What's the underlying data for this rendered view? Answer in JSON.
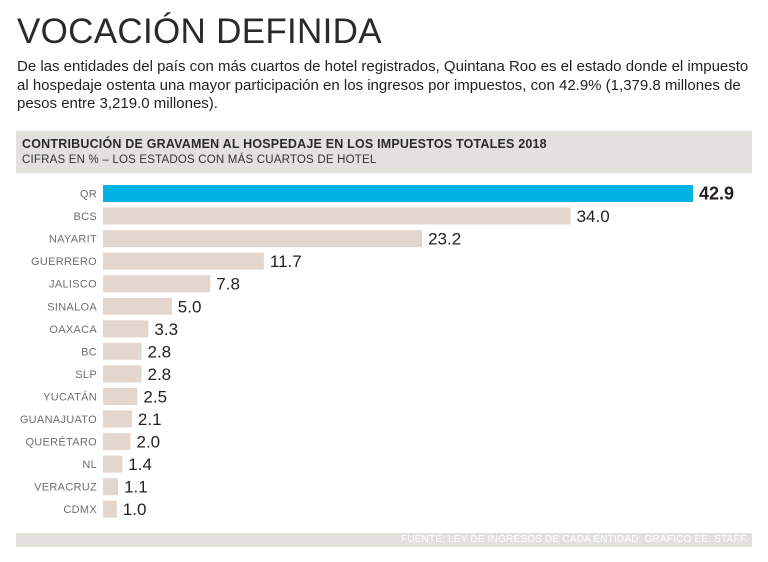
{
  "headline": "VOCACIÓN DEFINIDA",
  "intro": "De las entidades del país con más cuartos de hotel registrados, Quintana Roo es el estado donde el impuesto al hospedaje ostenta una mayor participación en los ingresos por impuestos, con 42.9% (1,379.8 millones de pesos entre 3,219.0 millones).",
  "colors": {
    "highlight": "#00b2e3",
    "bar": "#e3d6cf",
    "header_bg": "#e3e1de"
  },
  "chart_data": {
    "type": "bar",
    "orientation": "horizontal",
    "title": "CONTRIBUCIÓN DE GRAVAMEN AL HOSPEDAJE EN LOS IMPUESTOS TOTALES 2018",
    "subtitle": "CIFRAS EN % – LOS ESTADOS CON MÁS CUARTOS DE HOTEL",
    "categories": [
      "QR",
      "BCS",
      "NAYARIT",
      "GUERRERO",
      "JALISCO",
      "SINALOA",
      "OAXACA",
      "BC",
      "SLP",
      "YUCATÁN",
      "GUANAJUATO",
      "QUERÉTARO",
      "NL",
      "VERACRUZ",
      "CDMX"
    ],
    "values": [
      42.9,
      34.0,
      23.2,
      11.7,
      7.8,
      5.0,
      3.3,
      2.8,
      2.8,
      2.5,
      2.1,
      2.0,
      1.4,
      1.1,
      1.0
    ],
    "value_labels": [
      "42.9",
      "34.0",
      "23.2",
      "11.7",
      "7.8",
      "5.0",
      "3.3",
      "2.8",
      "2.8",
      "2.5",
      "2.1",
      "2.0",
      "1.4",
      "1.1",
      "1.0"
    ],
    "highlight_index": 0,
    "xlim": [
      0,
      42.9
    ],
    "xlabel": "",
    "ylabel": "",
    "grid": false
  },
  "source": "FUENTE: LEY DE INGRESOS DE CADA ENTIDAD. GRÁFICO EE: STAFF."
}
